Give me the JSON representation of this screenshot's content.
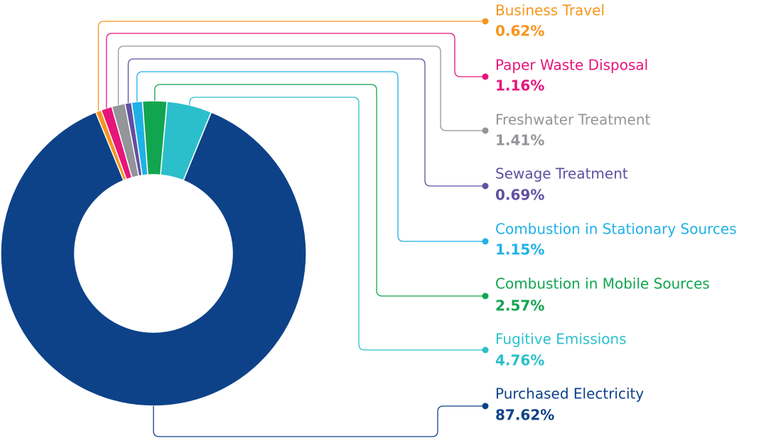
{
  "chart_data": {
    "type": "donut",
    "categories": [
      "Business Travel",
      "Paper Waste Disposal",
      "Freshwater Treatment",
      "Sewage Treatment",
      "Combustion in Stationary Sources",
      "Combustion in Mobile Sources",
      "Fugitive Emissions",
      "Purchased Electricity"
    ],
    "values": [
      0.62,
      1.16,
      1.41,
      0.69,
      1.15,
      2.57,
      4.76,
      87.62
    ],
    "value_labels": [
      "0.62%",
      "1.16%",
      "1.41%",
      "0.69%",
      "1.15%",
      "2.57%",
      "4.76%",
      "87.62%"
    ],
    "colors": [
      "#f7941d",
      "#e6157a",
      "#939598",
      "#6050a0",
      "#1fb1e6",
      "#12a54f",
      "#2bbfcb",
      "#0d4289"
    ]
  }
}
